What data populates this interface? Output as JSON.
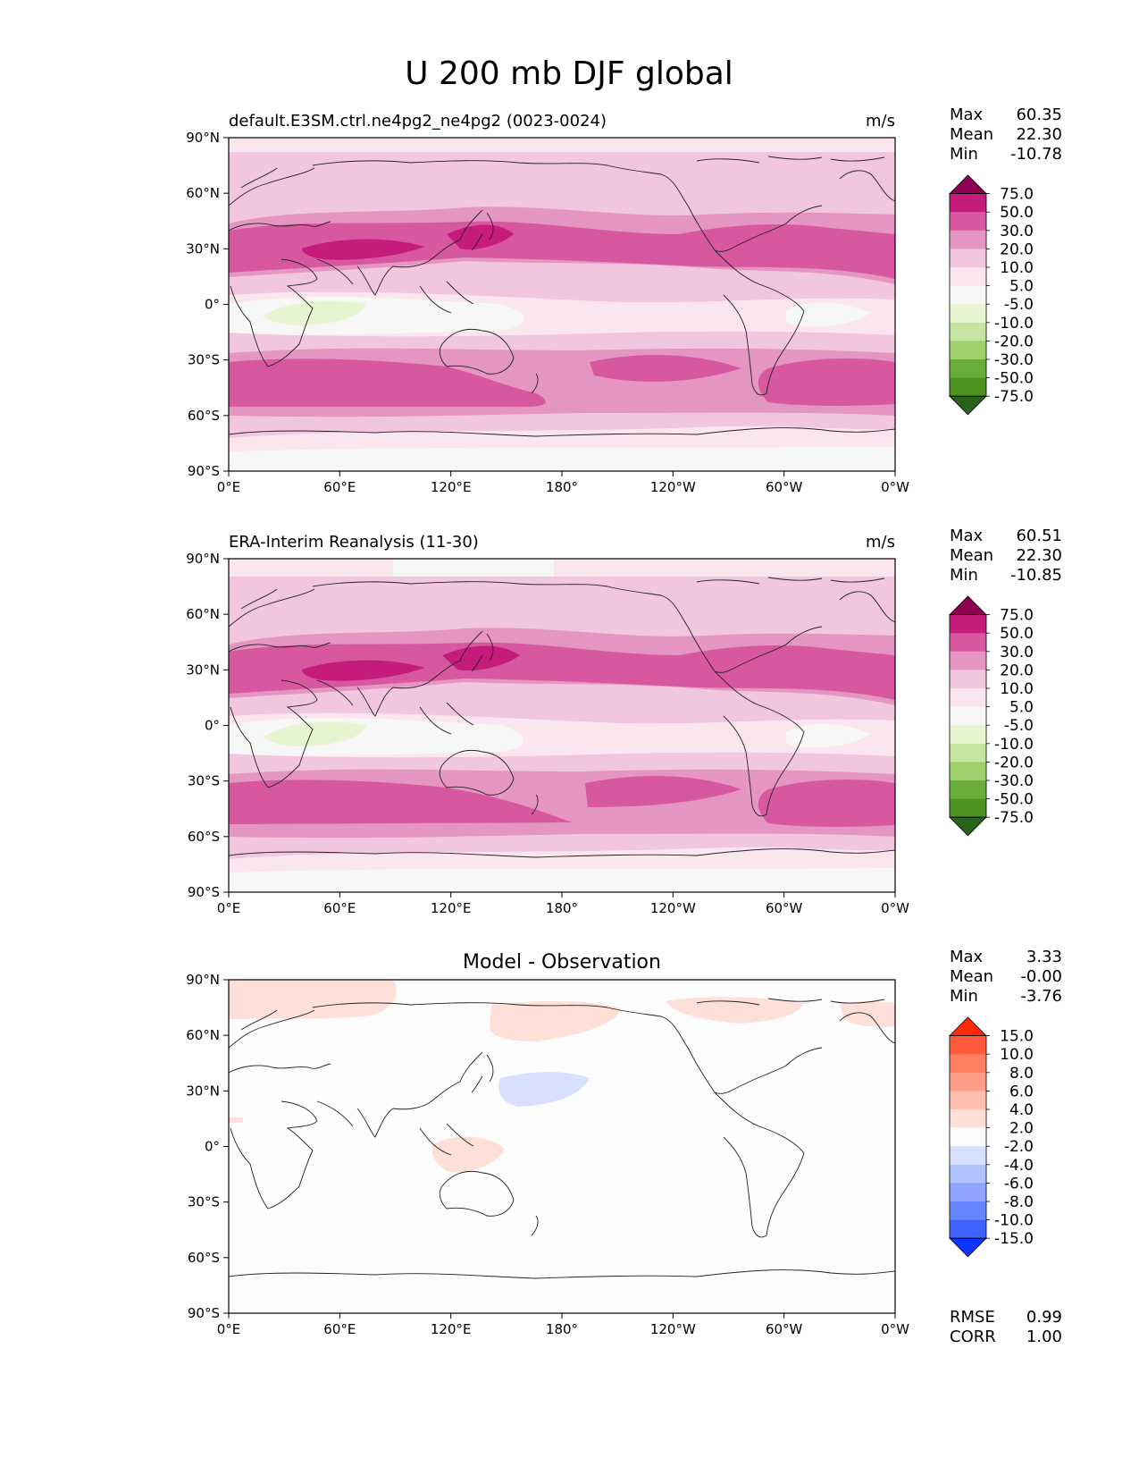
{
  "title": "U 200 mb DJF global",
  "axes": {
    "lat_ticks": [
      "90°N",
      "60°N",
      "30°N",
      "0°",
      "30°S",
      "60°S",
      "90°S"
    ],
    "lon_ticks": [
      "0°E",
      "60°E",
      "120°E",
      "180°",
      "120°W",
      "60°W",
      "0°W"
    ]
  },
  "panels": [
    {
      "id": "test",
      "title": "default.E3SM.ctrl.ne4pg2_ne4pg2 (0023-0024)",
      "units": "m/s",
      "stats": [
        {
          "label": "Max",
          "value": "60.35"
        },
        {
          "label": "Mean",
          "value": "22.30"
        },
        {
          "label": "Min",
          "value": "-10.78"
        }
      ],
      "colorbar": {
        "levels": [
          "75.0",
          "50.0",
          "30.0",
          "20.0",
          "10.0",
          "5.0",
          "-5.0",
          "-10.0",
          "-20.0",
          "-30.0",
          "-50.0",
          "-75.0"
        ],
        "colors": [
          "#8e0152",
          "#c51b7d",
          "#d8589f",
          "#e495c2",
          "#f1c6de",
          "#fbe5ef",
          "#f7f7f7",
          "#e6f5d0",
          "#c5e5a0",
          "#9dd06a",
          "#6aac3a",
          "#4d9221",
          "#276419"
        ]
      }
    },
    {
      "id": "reference",
      "title": "ERA-Interim Reanalysis (11-30)",
      "units": "m/s",
      "stats": [
        {
          "label": "Max",
          "value": "60.51"
        },
        {
          "label": "Mean",
          "value": "22.30"
        },
        {
          "label": "Min",
          "value": "-10.85"
        }
      ],
      "colorbar": {
        "levels": [
          "75.0",
          "50.0",
          "30.0",
          "20.0",
          "10.0",
          "5.0",
          "-5.0",
          "-10.0",
          "-20.0",
          "-30.0",
          "-50.0",
          "-75.0"
        ],
        "colors": [
          "#8e0152",
          "#c51b7d",
          "#d8589f",
          "#e495c2",
          "#f1c6de",
          "#fbe5ef",
          "#f7f7f7",
          "#e6f5d0",
          "#c5e5a0",
          "#9dd06a",
          "#6aac3a",
          "#4d9221",
          "#276419"
        ]
      }
    },
    {
      "id": "difference",
      "title": "Model - Observation",
      "units": "",
      "stats": [
        {
          "label": "Max",
          "value": "3.33"
        },
        {
          "label": "Mean",
          "value": "-0.00"
        },
        {
          "label": "Min",
          "value": "-3.76"
        }
      ],
      "extra_stats": [
        {
          "label": "RMSE",
          "value": "0.99"
        },
        {
          "label": "CORR",
          "value": "1.00"
        }
      ],
      "colorbar": {
        "levels": [
          "15.0",
          "10.0",
          "8.0",
          "6.0",
          "4.0",
          "2.0",
          "-2.0",
          "-4.0",
          "-6.0",
          "-8.0",
          "-10.0",
          "-15.0"
        ],
        "colors": [
          "#ff2a0a",
          "#ff5a3c",
          "#ff7f63",
          "#ff9e88",
          "#ffbfae",
          "#ffe0d8",
          "#fdfdfd",
          "#d8e0ff",
          "#b0c2ff",
          "#8ea4ff",
          "#6685ff",
          "#3f63ff",
          "#0a36ff"
        ]
      }
    }
  ]
}
